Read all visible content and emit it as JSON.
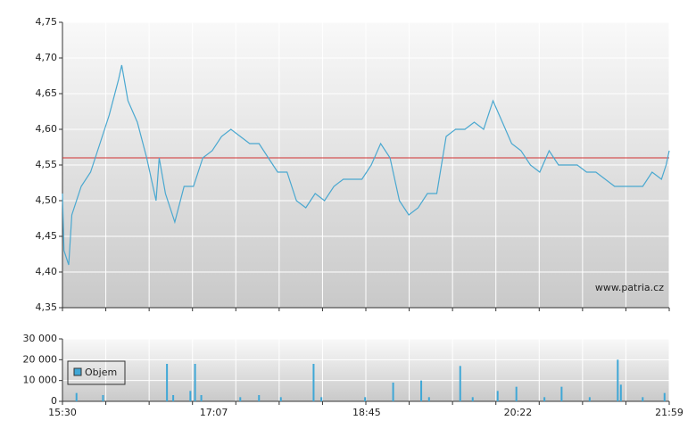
{
  "chart_data": [
    {
      "type": "line",
      "color": "#4aa8d0",
      "x": [
        "15:30",
        "15:31",
        "15:34",
        "15:36",
        "15:42",
        "15:48",
        "15:54",
        "16:00",
        "16:06",
        "16:08",
        "16:12",
        "16:18",
        "16:24",
        "16:30",
        "16:32",
        "16:36",
        "16:42",
        "16:48",
        "16:54",
        "17:00",
        "17:06",
        "17:12",
        "17:18",
        "17:24",
        "17:30",
        "17:36",
        "17:42",
        "17:48",
        "17:54",
        "18:00",
        "18:06",
        "18:12",
        "18:18",
        "18:24",
        "18:30",
        "18:36",
        "18:42",
        "18:48",
        "18:54",
        "19:00",
        "19:06",
        "19:12",
        "19:18",
        "19:24",
        "19:30",
        "19:36",
        "19:42",
        "19:48",
        "19:54",
        "20:00",
        "20:06",
        "20:12",
        "20:18",
        "20:24",
        "20:30",
        "20:36",
        "20:42",
        "20:48",
        "20:54",
        "21:00",
        "21:06",
        "21:12",
        "21:18",
        "21:24",
        "21:30",
        "21:36",
        "21:42",
        "21:48",
        "21:54",
        "21:57",
        "21:59"
      ],
      "values": [
        4.51,
        4.43,
        4.41,
        4.48,
        4.52,
        4.54,
        4.58,
        4.62,
        4.67,
        4.69,
        4.64,
        4.61,
        4.56,
        4.5,
        4.56,
        4.51,
        4.47,
        4.52,
        4.52,
        4.56,
        4.57,
        4.59,
        4.6,
        4.59,
        4.58,
        4.58,
        4.56,
        4.54,
        4.54,
        4.5,
        4.49,
        4.51,
        4.5,
        4.52,
        4.53,
        4.53,
        4.53,
        4.55,
        4.58,
        4.56,
        4.5,
        4.48,
        4.49,
        4.51,
        4.51,
        4.59,
        4.6,
        4.6,
        4.61,
        4.6,
        4.64,
        4.61,
        4.58,
        4.57,
        4.55,
        4.54,
        4.57,
        4.55,
        4.55,
        4.55,
        4.54,
        4.54,
        4.53,
        4.52,
        4.52,
        4.52,
        4.52,
        4.54,
        4.53,
        4.55,
        4.57
      ],
      "reference_line": 4.56,
      "reference_color": "#d03030",
      "xlim": [
        "15:30",
        "21:59"
      ],
      "ylim": [
        4.35,
        4.75
      ],
      "yticks": [
        {
          "value": 4.35,
          "label": "4,35"
        },
        {
          "value": 4.4,
          "label": "4,40"
        },
        {
          "value": 4.45,
          "label": "4,45"
        },
        {
          "value": 4.5,
          "label": "4,50"
        },
        {
          "value": 4.55,
          "label": "4,55"
        },
        {
          "value": 4.6,
          "label": "4,60"
        },
        {
          "value": 4.65,
          "label": "4,65"
        },
        {
          "value": 4.7,
          "label": "4,70"
        },
        {
          "value": 4.75,
          "label": "4,75"
        }
      ],
      "grid": true,
      "watermark": "www.patria.cz"
    },
    {
      "type": "bar",
      "x": [
        "15:39",
        "15:56",
        "16:37",
        "16:41",
        "16:52",
        "16:55",
        "16:59",
        "17:24",
        "17:36",
        "17:50",
        "18:11",
        "18:16",
        "18:44",
        "19:02",
        "19:20",
        "19:25",
        "19:45",
        "19:53",
        "20:09",
        "20:21",
        "20:39",
        "20:50",
        "21:08",
        "21:26",
        "21:28",
        "21:42",
        "21:56"
      ],
      "series": [
        {
          "name": "Objem",
          "color": "#3fa7d6",
          "values": [
            4000,
            3000,
            18000,
            3000,
            5000,
            18000,
            3000,
            2000,
            3000,
            2000,
            18000,
            2000,
            2000,
            9000,
            10000,
            2000,
            17000,
            2000,
            5000,
            7000,
            2000,
            7000,
            2000,
            20000,
            8000,
            2000,
            4000
          ]
        }
      ],
      "xlim": [
        "15:30",
        "21:59"
      ],
      "xticks": [
        "15:30",
        "17:07",
        "18:45",
        "20:22",
        "21:59"
      ],
      "ylim": [
        0,
        30000
      ],
      "yticks": [
        0,
        {
          "value": 10000,
          "label": "10 000"
        },
        {
          "value": 20000,
          "label": "20 000"
        },
        {
          "value": 30000,
          "label": "30 000"
        }
      ],
      "grid": true,
      "legend": "upper left"
    }
  ]
}
